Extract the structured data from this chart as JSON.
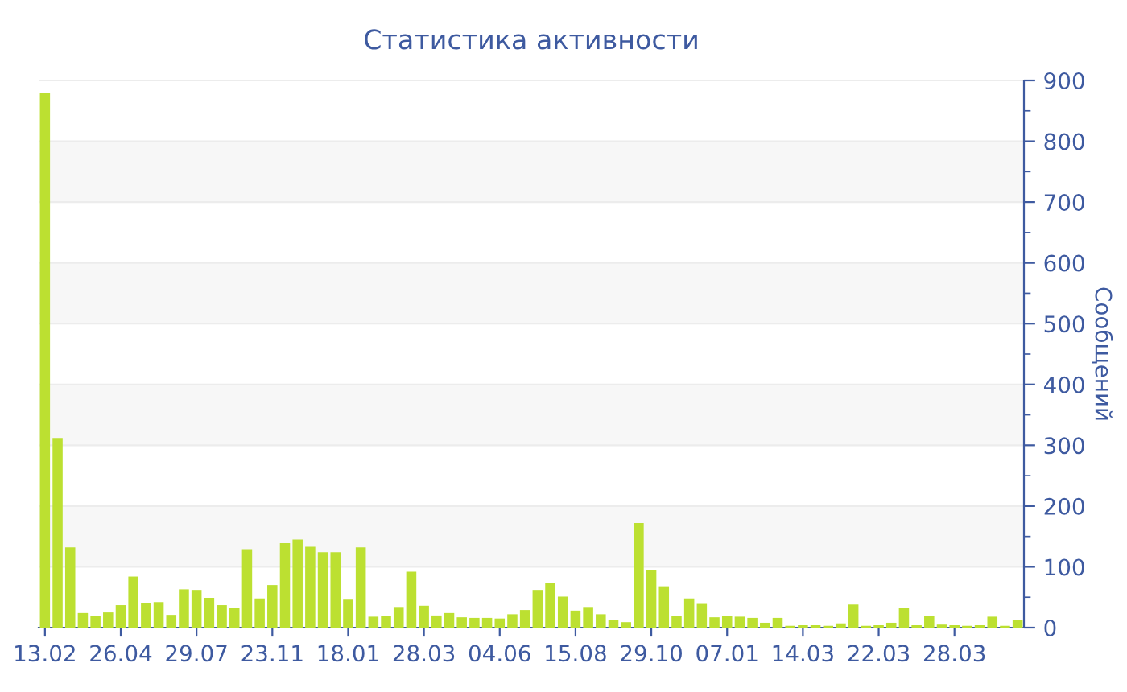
{
  "chart_data": {
    "type": "bar",
    "title": "Статистика активности",
    "ylabel": "Сообщений",
    "categories": [
      "13.02",
      null,
      null,
      null,
      null,
      null,
      "26.04",
      null,
      null,
      null,
      null,
      null,
      "29.07",
      null,
      null,
      null,
      null,
      null,
      "23.11",
      null,
      null,
      null,
      null,
      null,
      "18.01",
      null,
      null,
      null,
      null,
      null,
      "28.03",
      null,
      null,
      null,
      null,
      null,
      "04.06",
      null,
      null,
      null,
      null,
      null,
      "15.08",
      null,
      null,
      null,
      null,
      null,
      "29.10",
      null,
      null,
      null,
      null,
      null,
      "07.01",
      null,
      null,
      null,
      null,
      null,
      "14.03",
      null,
      null,
      null,
      null,
      null,
      "22.03",
      null,
      null,
      null,
      null,
      null,
      "28.03",
      null,
      null,
      null,
      null,
      null
    ],
    "values": [
      880,
      312,
      132,
      24,
      19,
      25,
      37,
      84,
      40,
      42,
      21,
      63,
      62,
      49,
      37,
      33,
      129,
      48,
      70,
      139,
      145,
      133,
      124,
      124,
      46,
      132,
      18,
      19,
      34,
      92,
      36,
      20,
      24,
      17,
      16,
      16,
      15,
      22,
      29,
      62,
      74,
      51,
      28,
      34,
      22,
      13,
      9,
      172,
      95,
      68,
      19,
      48,
      39,
      17,
      19,
      18,
      16,
      8,
      16,
      3,
      4,
      4,
      3,
      7,
      38,
      3,
      4,
      8,
      33,
      4,
      19,
      5,
      4,
      3,
      4,
      18,
      3,
      12
    ],
    "color": "#bce031",
    "ylim": [
      0,
      900
    ],
    "yticks": [
      0,
      100,
      200,
      300,
      400,
      500,
      600,
      700,
      800,
      900
    ],
    "grid": "y"
  }
}
